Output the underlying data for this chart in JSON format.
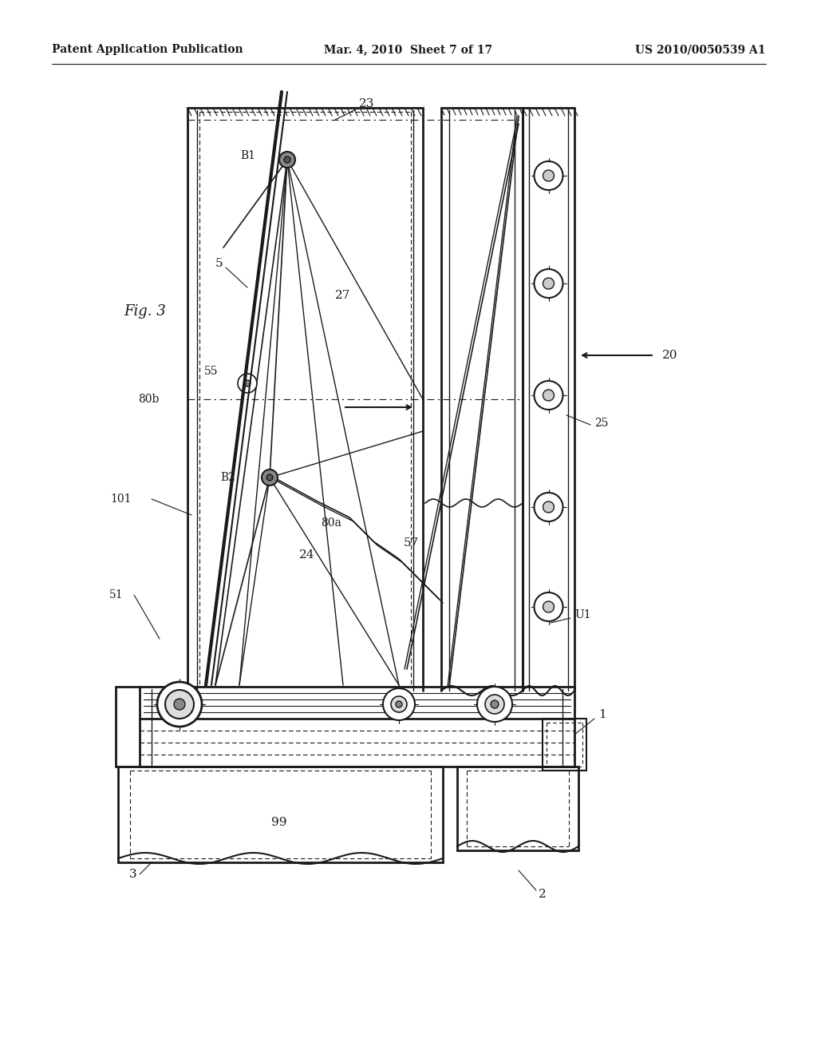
{
  "header_left": "Patent Application Publication",
  "header_center": "Mar. 4, 2010  Sheet 7 of 17",
  "header_right": "US 2010/0050539 A1",
  "bg_color": "#ffffff",
  "line_color": "#1a1a1a"
}
